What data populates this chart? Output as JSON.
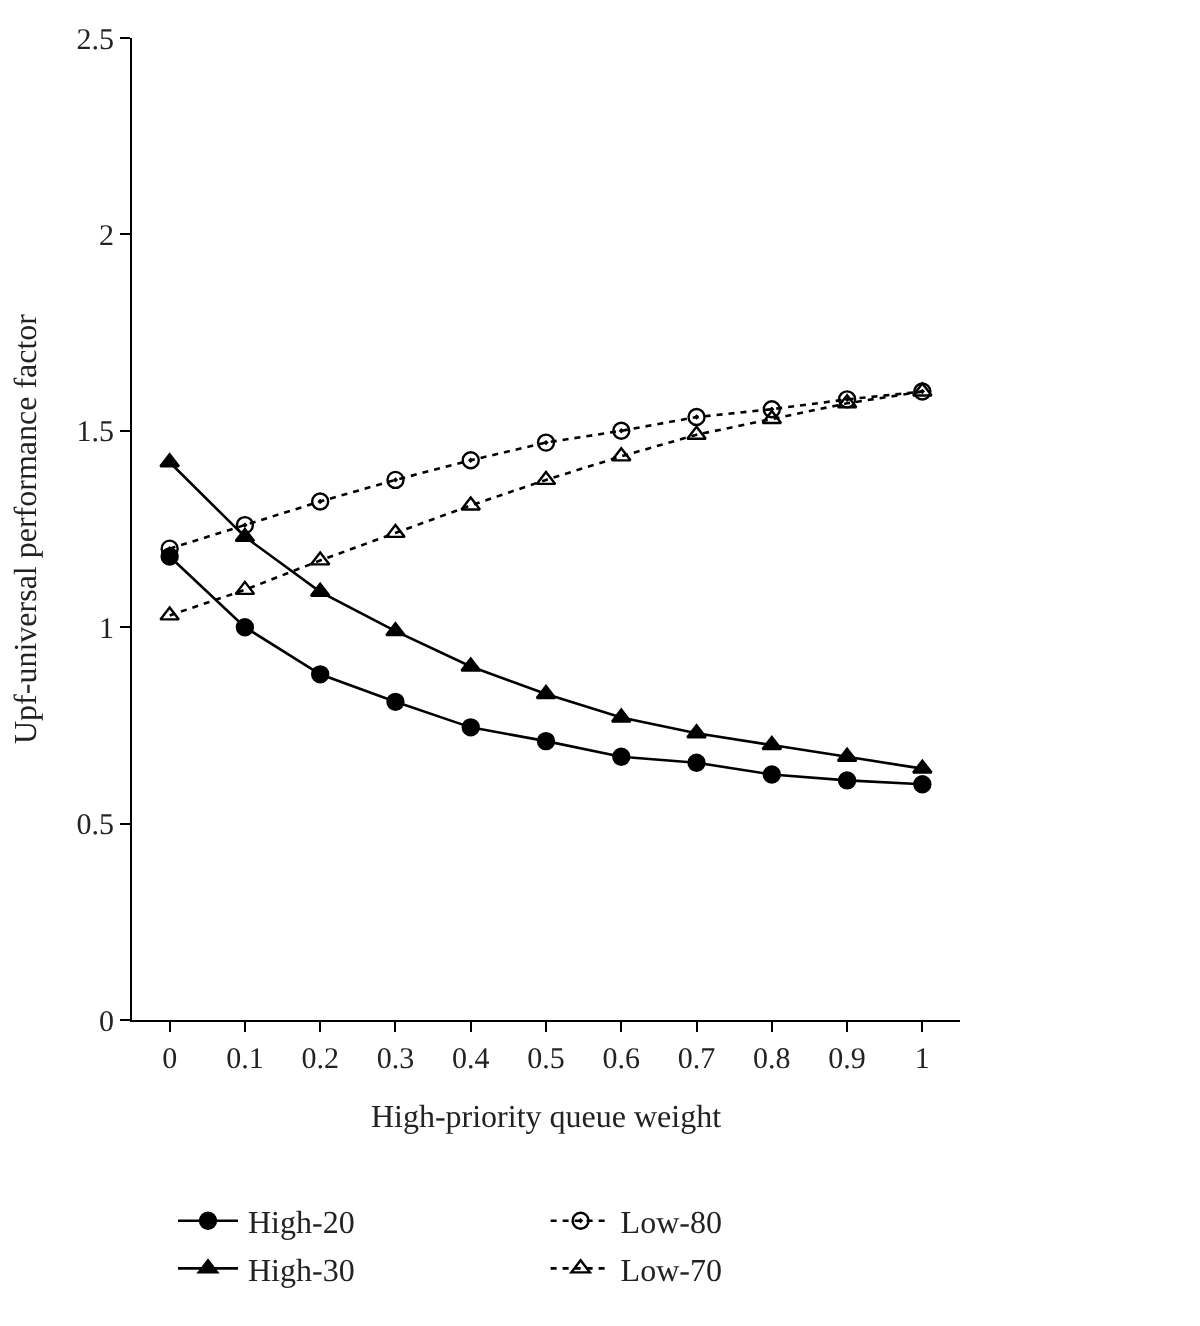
{
  "chart_data": {
    "type": "line",
    "xlabel": "High-priority queue weight",
    "ylabel": "Upf-universal performance factor",
    "categories": [
      "0",
      "0.1",
      "0.2",
      "0.3",
      "0.4",
      "0.5",
      "0.6",
      "0.7",
      "0.8",
      "0.9",
      "1"
    ],
    "ylim": [
      0,
      2.5
    ],
    "yticks": [
      0,
      0.5,
      1,
      1.5,
      2,
      2.5
    ],
    "legend": "bottom",
    "series": [
      {
        "name": "High-20",
        "color": "#000000",
        "marker": "circle",
        "line_style": "solid",
        "values": [
          1.18,
          1.0,
          0.88,
          0.81,
          0.745,
          0.71,
          0.67,
          0.655,
          0.625,
          0.61,
          0.6
        ]
      },
      {
        "name": "Low-80",
        "color": "#000000",
        "marker": "circle",
        "line_style": "dotted",
        "values": [
          1.2,
          1.26,
          1.32,
          1.375,
          1.425,
          1.47,
          1.5,
          1.535,
          1.555,
          1.58,
          1.6
        ]
      },
      {
        "name": "High-30",
        "color": "#000000",
        "marker": "triangle",
        "line_style": "solid",
        "values": [
          1.42,
          1.23,
          1.09,
          0.99,
          0.9,
          0.83,
          0.77,
          0.73,
          0.7,
          0.67,
          0.64
        ]
      },
      {
        "name": "Low-70",
        "color": "#000000",
        "marker": "triangle",
        "line_style": "dotted",
        "values": [
          1.03,
          1.095,
          1.17,
          1.24,
          1.31,
          1.375,
          1.435,
          1.49,
          1.53,
          1.57,
          1.6
        ]
      }
    ]
  }
}
